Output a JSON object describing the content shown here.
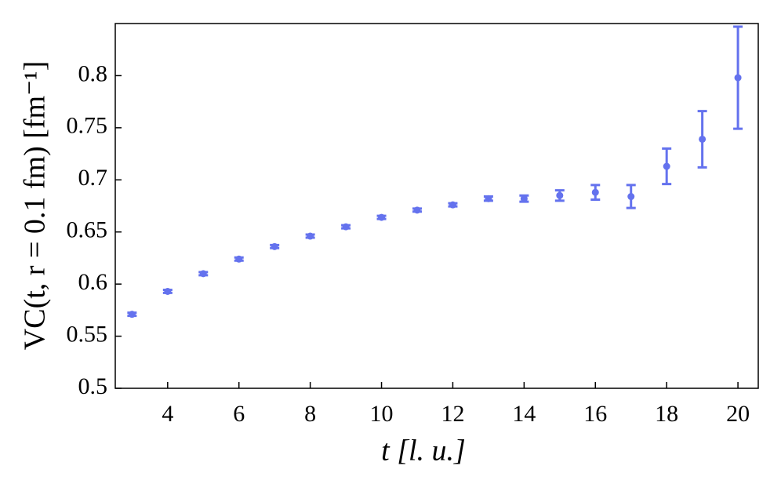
{
  "chart_data": {
    "type": "errorbar-scatter",
    "xlabel": "t [l. u.]",
    "ylabel": "VC(t, r = 0.1 fm) [fm⁻¹]",
    "x": [
      3,
      4,
      5,
      6,
      7,
      8,
      9,
      10,
      11,
      12,
      13,
      14,
      15,
      16,
      17,
      18,
      19,
      20
    ],
    "series": [
      {
        "color": "#6472ee",
        "values": [
          0.571,
          0.593,
          0.61,
          0.624,
          0.636,
          0.646,
          0.655,
          0.664,
          0.671,
          0.676,
          0.682,
          0.682,
          0.685,
          0.688,
          0.684,
          0.713,
          0.739,
          0.798
        ],
        "errors": [
          0.0015,
          0.0015,
          0.0015,
          0.0015,
          0.0015,
          0.0015,
          0.0015,
          0.0015,
          0.0015,
          0.0015,
          0.002,
          0.003,
          0.005,
          0.007,
          0.011,
          0.017,
          0.027,
          0.049
        ]
      }
    ],
    "xlim": [
      2.53,
      20.57
    ],
    "xticks": [
      4,
      6,
      8,
      10,
      12,
      14,
      16,
      18,
      20
    ],
    "ylim": [
      0.5,
      0.85
    ],
    "yticks": [
      0.5,
      0.55,
      0.6,
      0.65,
      0.7,
      0.75,
      0.8
    ],
    "grid": false
  }
}
